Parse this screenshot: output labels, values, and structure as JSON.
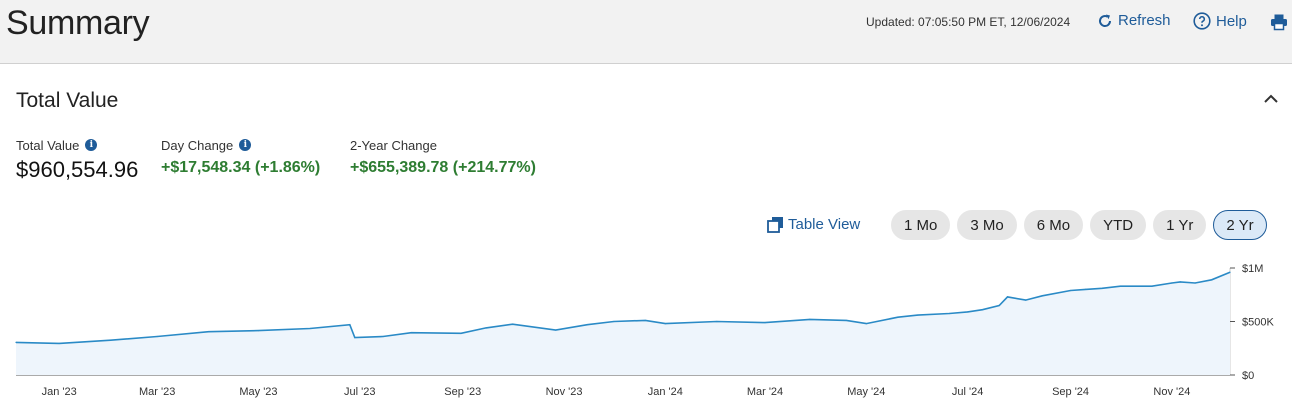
{
  "header": {
    "title": "Summary",
    "updated": "Updated: 07:05:50 PM ET, 12/06/2024",
    "refresh_label": "Refresh",
    "help_label": "Help",
    "print_icon": "printer-icon",
    "accent_color": "#1f5c99"
  },
  "section": {
    "title": "Total Value",
    "collapse_icon": "chevron-up-icon"
  },
  "metrics": {
    "total_value_label": "Total Value",
    "total_value": "$960,554.96",
    "day_change_label": "Day Change",
    "day_change": "+$17,548.34 (+1.86%)",
    "two_year_label": "2-Year Change",
    "two_year_change": "+$655,389.78 (+214.77%)",
    "positive_color": "#2e7d32"
  },
  "controls": {
    "table_view_label": "Table View",
    "ranges": [
      "1 Mo",
      "3 Mo",
      "6 Mo",
      "YTD",
      "1 Yr",
      "2 Yr"
    ],
    "selected_range": "2 Yr"
  },
  "chart_data": {
    "type": "area",
    "x_tick_labels": [
      "Jan '23",
      "Mar '23",
      "May '23",
      "Jul '23",
      "Sep '23",
      "Nov '23",
      "Jan '24",
      "Mar '24",
      "May '24",
      "Jul '24",
      "Sep '24",
      "Nov '24"
    ],
    "y_tick_labels": [
      "$1M",
      "$500K",
      "$0"
    ],
    "ylim": [
      0,
      1000000
    ],
    "line_color": "#2a8ac6",
    "fill_color": "#eef5fc",
    "x": [
      "2022-12-06",
      "2023-01-01",
      "2023-02-01",
      "2023-03-01",
      "2023-04-01",
      "2023-05-01",
      "2023-06-01",
      "2023-06-25",
      "2023-06-28",
      "2023-07-15",
      "2023-08-01",
      "2023-08-31",
      "2023-09-15",
      "2023-10-01",
      "2023-10-27",
      "2023-11-15",
      "2023-12-01",
      "2023-12-20",
      "2024-01-01",
      "2024-02-01",
      "2024-03-01",
      "2024-03-28",
      "2024-04-19",
      "2024-05-01",
      "2024-05-20",
      "2024-06-01",
      "2024-06-20",
      "2024-07-01",
      "2024-07-10",
      "2024-07-20",
      "2024-07-25",
      "2024-08-05",
      "2024-08-15",
      "2024-09-01",
      "2024-09-10",
      "2024-09-20",
      "2024-10-01",
      "2024-10-20",
      "2024-11-01",
      "2024-11-06",
      "2024-11-15",
      "2024-11-25",
      "2024-12-06"
    ],
    "y": [
      305000,
      295000,
      325000,
      360000,
      405000,
      415000,
      435000,
      470000,
      350000,
      360000,
      395000,
      390000,
      440000,
      475000,
      420000,
      470000,
      500000,
      510000,
      480000,
      500000,
      490000,
      520000,
      510000,
      480000,
      540000,
      560000,
      575000,
      590000,
      610000,
      650000,
      730000,
      700000,
      740000,
      790000,
      800000,
      810000,
      830000,
      830000,
      860000,
      870000,
      860000,
      890000,
      960555
    ]
  }
}
